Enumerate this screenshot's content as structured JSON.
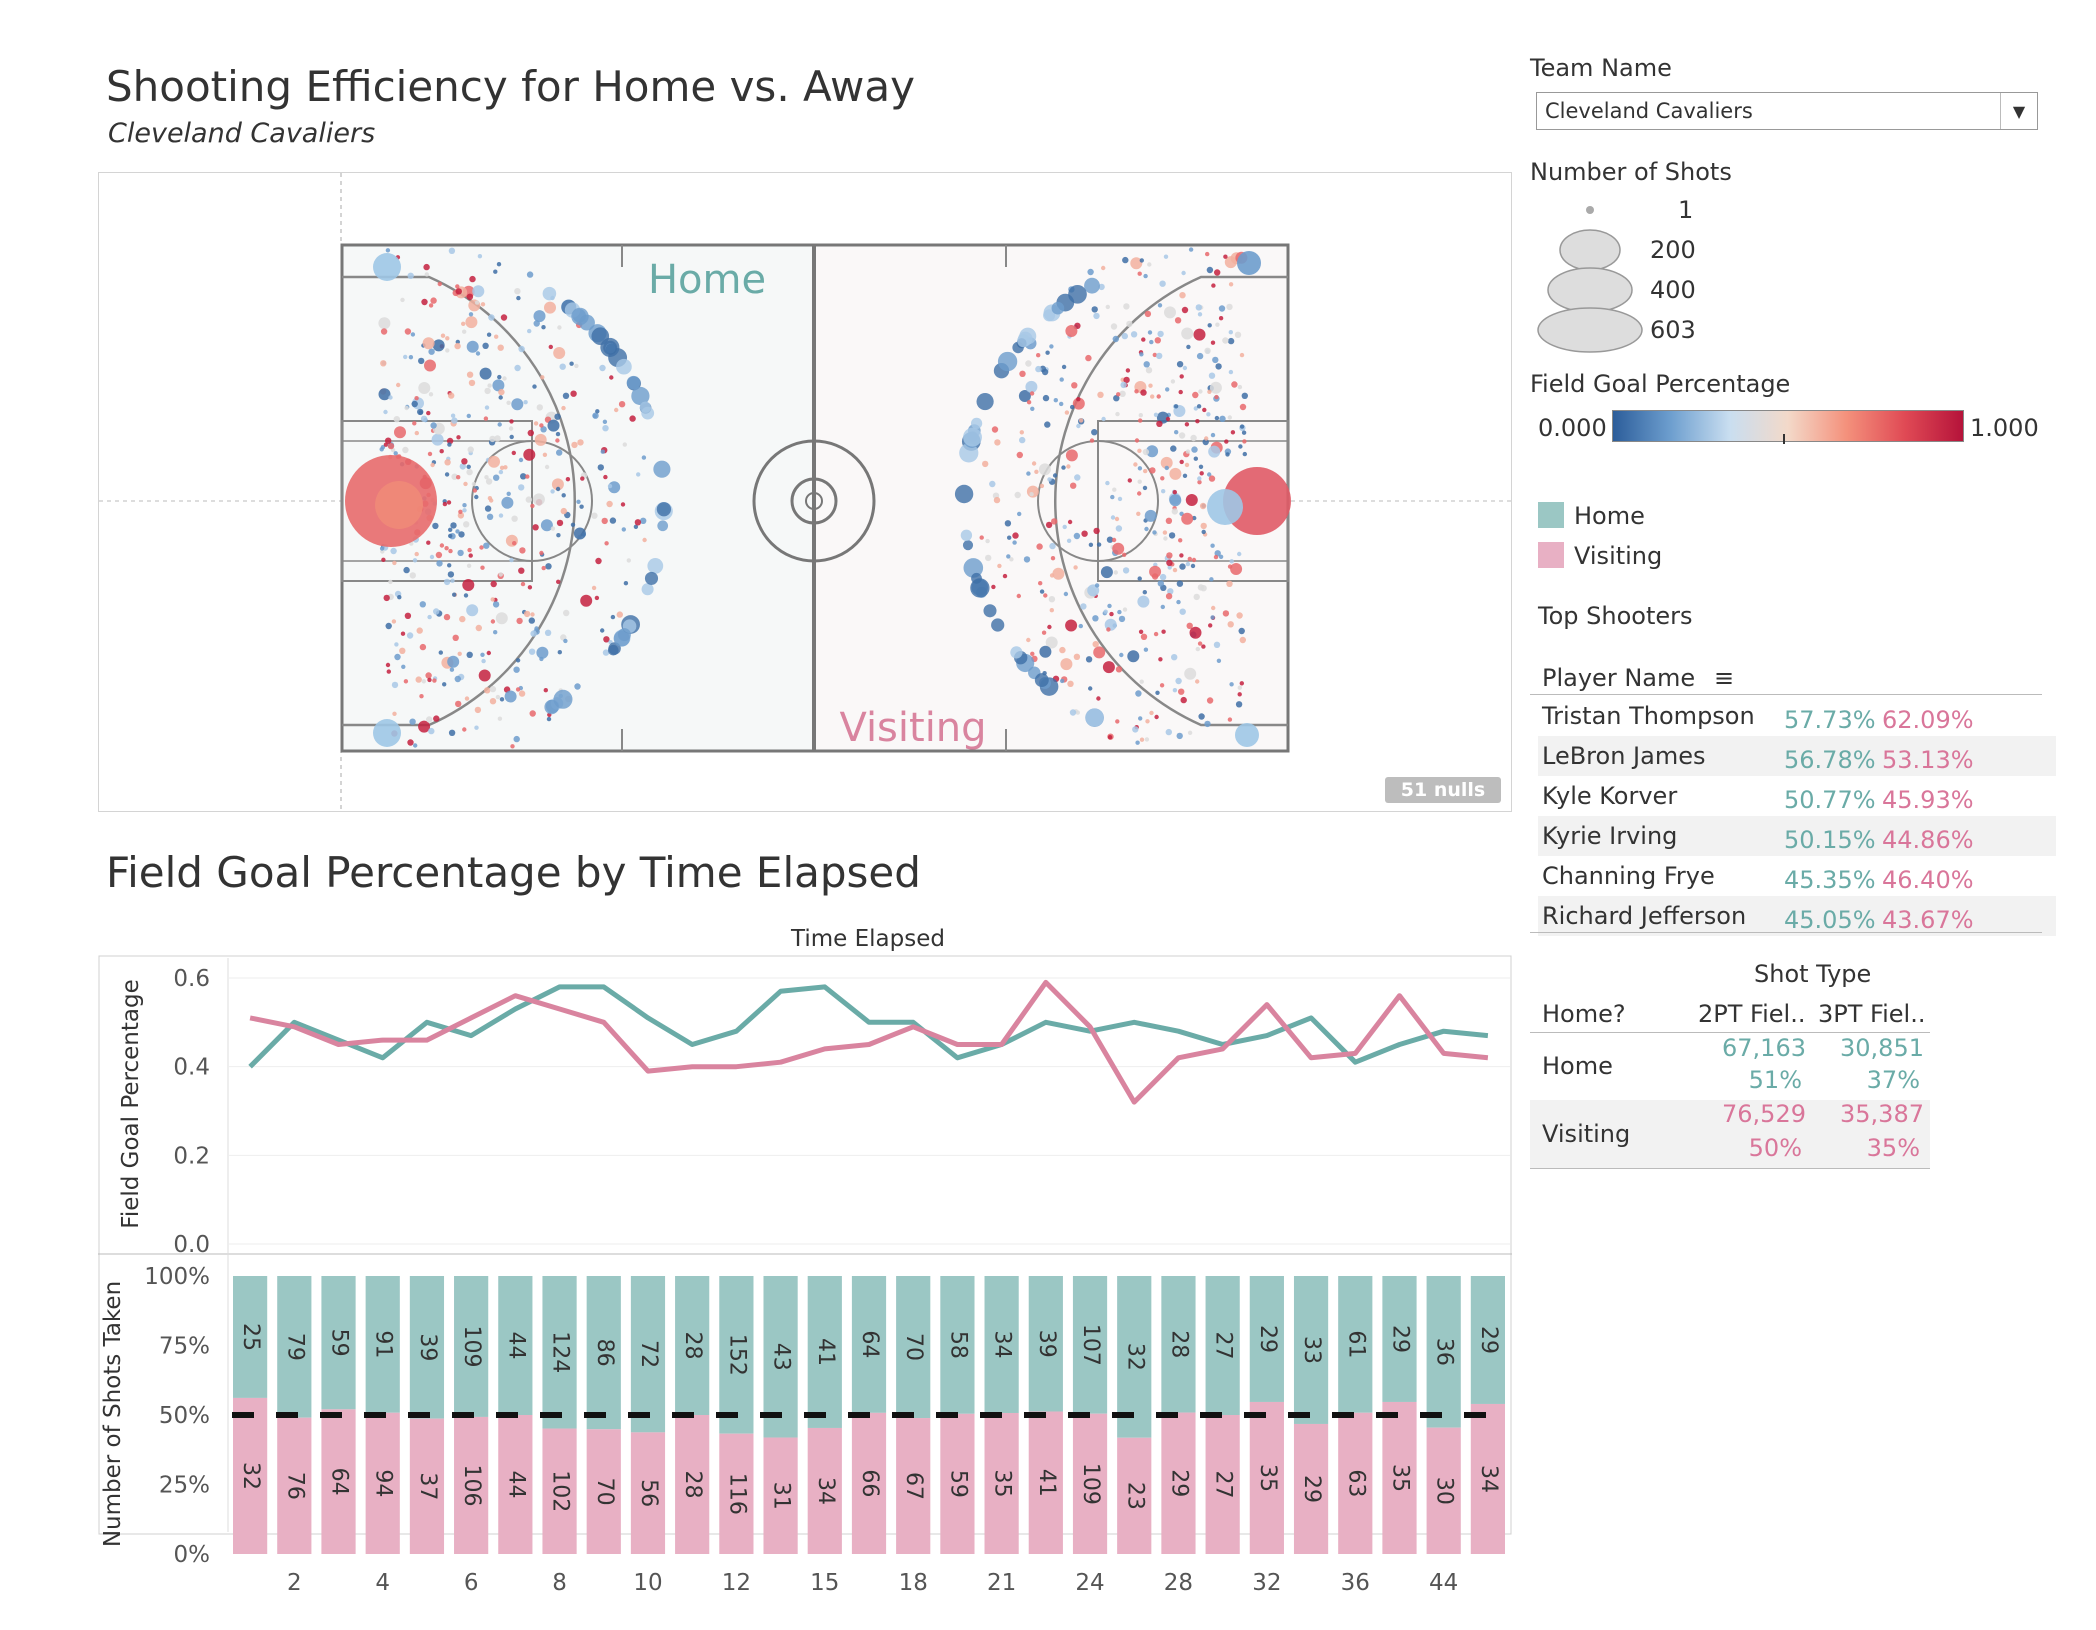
{
  "header": {
    "title": "Shooting Efficiency for Home vs. Away",
    "subtitle": "Cleveland Cavaliers"
  },
  "court": {
    "home_label": "Home",
    "visiting_label": "Visiting",
    "nulls_badge": "51 nulls"
  },
  "filters": {
    "team_label": "Team Name",
    "team_value": "Cleveland Cavaliers",
    "dropdown_icon": "chevron-down-icon"
  },
  "size_legend": {
    "title": "Number of Shots",
    "items": [
      "1",
      "200",
      "400",
      "603"
    ]
  },
  "color_legend": {
    "title": "Field Goal Percentage",
    "min": "0.000",
    "max": "1.000",
    "colors": [
      "#2c5d9a",
      "#9ec6e6",
      "#f4d6c6",
      "#f08a78",
      "#b5133a"
    ]
  },
  "home_legend": {
    "home": "Home",
    "visiting": "Visiting",
    "home_color": "#9bc7c4",
    "visiting_color": "#e8b0c4"
  },
  "top_shooters": {
    "title": "Top Shooters",
    "column": "Player Name",
    "sort_icon": "sort-icon",
    "rows": [
      {
        "name": "Tristan Thompson",
        "home": "57.73%",
        "visiting": "62.09%"
      },
      {
        "name": "LeBron James",
        "home": "56.78%",
        "visiting": "53.13%"
      },
      {
        "name": "Kyle Korver",
        "home": "50.77%",
        "visiting": "45.93%"
      },
      {
        "name": "Kyrie Irving",
        "home": "50.15%",
        "visiting": "44.86%"
      },
      {
        "name": "Channing Frye",
        "home": "45.35%",
        "visiting": "46.40%"
      },
      {
        "name": "Richard Jefferson",
        "home": "45.05%",
        "visiting": "43.67%"
      }
    ]
  },
  "shot_type": {
    "title": "Shot Type",
    "row_header": "Home?",
    "col1": "2PT Fiel..",
    "col2": "3PT Fiel..",
    "rows": [
      {
        "label": "Home",
        "c1_count": "67,163",
        "c1_pct": "51%",
        "c2_count": "30,851",
        "c2_pct": "37%"
      },
      {
        "label": "Visiting",
        "c1_count": "76,529",
        "c1_pct": "50%",
        "c2_count": "35,387",
        "c2_pct": "35%"
      }
    ]
  },
  "time_chart": {
    "title": "Field Goal Percentage by Time Elapsed"
  },
  "chart_data": [
    {
      "type": "line",
      "title": "Field Goal Percentage by Time Elapsed",
      "xlabel": "Time Elapsed",
      "ylabel": "Field Goal Percentage",
      "ylim": [
        0,
        0.6
      ],
      "yticks": [
        "0.0",
        "0.2",
        "0.4",
        "0.6"
      ],
      "x_ticks_shown": [
        "2",
        "4",
        "6",
        "8",
        "10",
        "12",
        "15",
        "18",
        "21",
        "24",
        "28",
        "32",
        "36",
        "44"
      ],
      "series": [
        {
          "name": "Home",
          "color": "#6aaba7",
          "values": [
            0.4,
            0.5,
            0.46,
            0.42,
            0.5,
            0.47,
            0.53,
            0.58,
            0.58,
            0.51,
            0.45,
            0.48,
            0.57,
            0.58,
            0.5,
            0.5,
            0.42,
            0.45,
            0.5,
            0.48,
            0.5,
            0.48,
            0.45,
            0.47,
            0.51,
            0.41,
            0.45,
            0.48,
            0.47
          ]
        },
        {
          "name": "Visiting",
          "color": "#d9849f",
          "values": [
            0.51,
            0.49,
            0.45,
            0.46,
            0.46,
            0.51,
            0.56,
            0.53,
            0.5,
            0.39,
            0.4,
            0.4,
            0.41,
            0.44,
            0.45,
            0.49,
            0.45,
            0.45,
            0.59,
            0.49,
            0.32,
            0.42,
            0.44,
            0.54,
            0.42,
            0.43,
            0.56,
            0.43,
            0.42
          ]
        }
      ]
    },
    {
      "type": "bar",
      "stacked": true,
      "ylabel": "Number of Shots Taken",
      "yticks": [
        "0%",
        "25%",
        "50%",
        "75%",
        "100%"
      ],
      "reference_line": 0.5,
      "series": [
        {
          "name": "Home",
          "color": "#9bc7c4",
          "values": [
            25,
            79,
            59,
            91,
            39,
            109,
            44,
            124,
            86,
            72,
            28,
            152,
            43,
            41,
            64,
            70,
            58,
            34,
            39,
            107,
            32,
            28,
            27,
            29,
            33,
            61,
            29,
            36,
            29
          ]
        },
        {
          "name": "Visiting",
          "color": "#e8b0c4",
          "values": [
            32,
            76,
            64,
            94,
            37,
            106,
            44,
            102,
            70,
            56,
            28,
            116,
            31,
            34,
            66,
            67,
            59,
            35,
            41,
            109,
            23,
            29,
            27,
            35,
            29,
            63,
            35,
            30,
            34
          ]
        }
      ]
    }
  ]
}
